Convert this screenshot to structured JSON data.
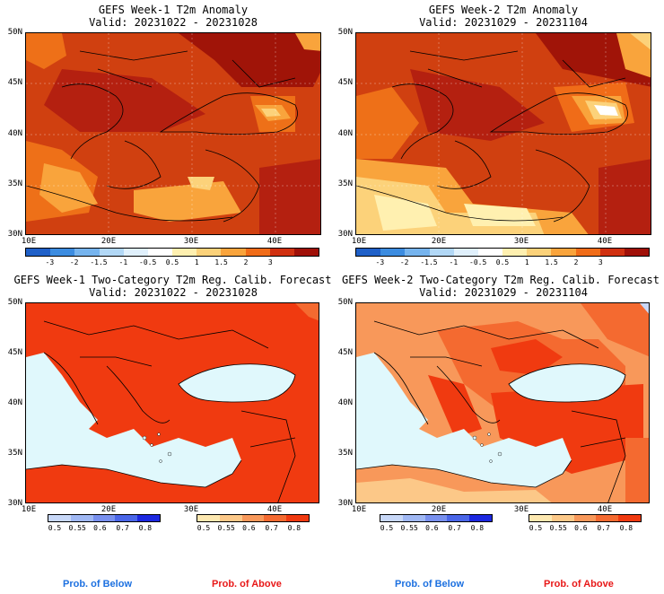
{
  "panels": [
    {
      "title": "GEFS Week-1 T2m Anomaly",
      "valid": "Valid: 20231022 - 20231028"
    },
    {
      "title": "GEFS Week-2 T2m Anomaly",
      "valid": "Valid: 20231029 - 20231104"
    },
    {
      "title": "GEFS Week-1 Two-Category T2m Reg. Calib. Forecast",
      "valid": "Valid: 20231022 - 20231028"
    },
    {
      "title": "GEFS Week-2 Two-Category T2m Reg. Calib. Forecast",
      "valid": "Valid: 20231029 - 20231104"
    }
  ],
  "axes": {
    "lat_labels": [
      "50N",
      "45N",
      "40N",
      "35N",
      "30N"
    ],
    "lon_labels": [
      "10E",
      "20E",
      "30E",
      "40E"
    ]
  },
  "anomaly_colorbar": {
    "labels": [
      "-3",
      "-2",
      "-1.5",
      "-1",
      "-0.5",
      "0.5",
      "1",
      "1.5",
      "2",
      "3"
    ],
    "colors": [
      "#1f60c8",
      "#3c8ce0",
      "#76b4ee",
      "#b2d8f6",
      "#e0f0fc",
      "#ffffff",
      "#fff0b0",
      "#fcd27a",
      "#f9a43c",
      "#f06c18",
      "#d03010",
      "#a01008"
    ]
  },
  "prob_colorbars": {
    "labels": [
      "0.5",
      "0.55",
      "0.6",
      "0.7",
      "0.8"
    ],
    "below_colors": [
      "#c8d8f8",
      "#a0b8f4",
      "#7890ee",
      "#4a66e8",
      "#1c28e0"
    ],
    "above_colors": [
      "#fde8b0",
      "#fcc888",
      "#f8985a",
      "#f46a30",
      "#f03a10"
    ]
  },
  "legend": {
    "below_label": "Prob. of Below",
    "above_label": "Prob. of Above",
    "below_color": "#1c70e0",
    "above_color": "#e81818"
  }
}
